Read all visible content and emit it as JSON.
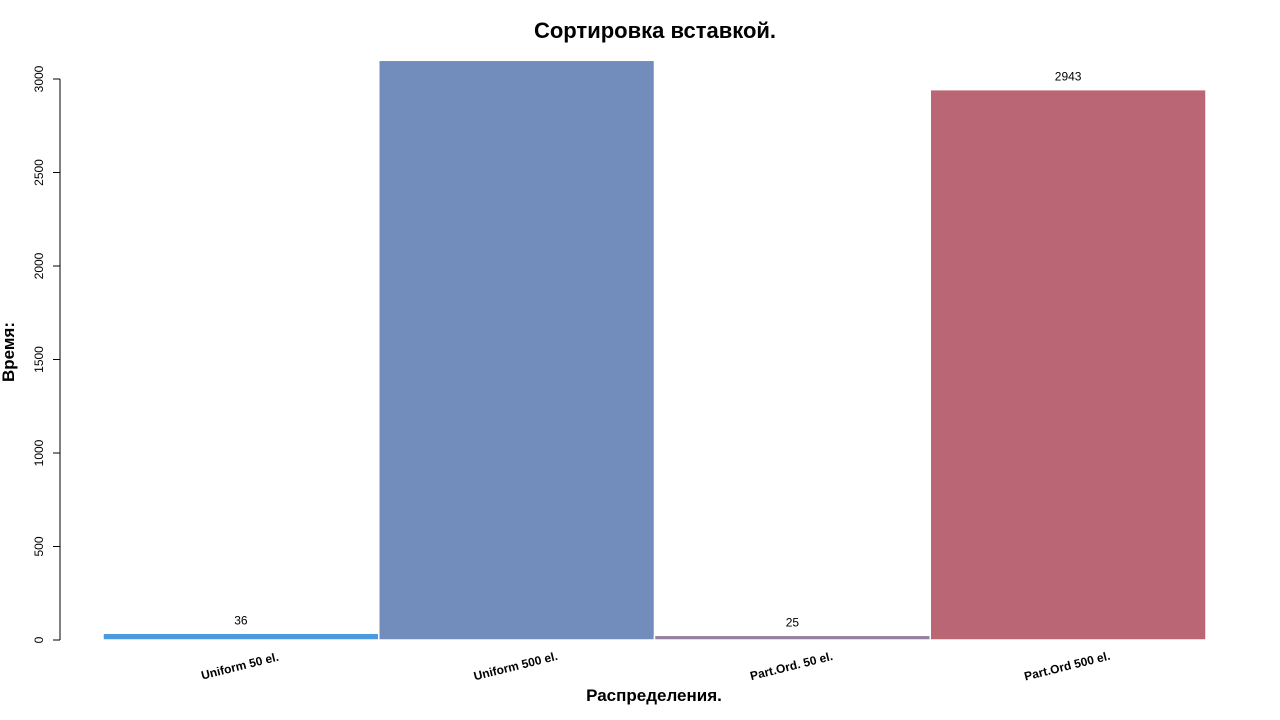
{
  "chart_data": {
    "type": "bar",
    "title": "Сортировка вставкой.",
    "xlabel": "Распределения.",
    "ylabel": "Время:",
    "categories": [
      "Uniform 50 el.",
      "Uniform 500 el.",
      "Part.Ord. 50 el.",
      "Part.Ord 500 el."
    ],
    "values": [
      36,
      3100,
      25,
      2943
    ],
    "data_labels": [
      "36",
      "",
      "25",
      "2943"
    ],
    "ylim": [
      0,
      3100
    ],
    "yticks": [
      0,
      500,
      1000,
      1500,
      2000,
      2500,
      3000
    ],
    "bar_colors": [
      "#4C9BE0",
      "#728CBC",
      "#9680A0",
      "#BB6674"
    ],
    "grid": false,
    "legend": "none"
  }
}
